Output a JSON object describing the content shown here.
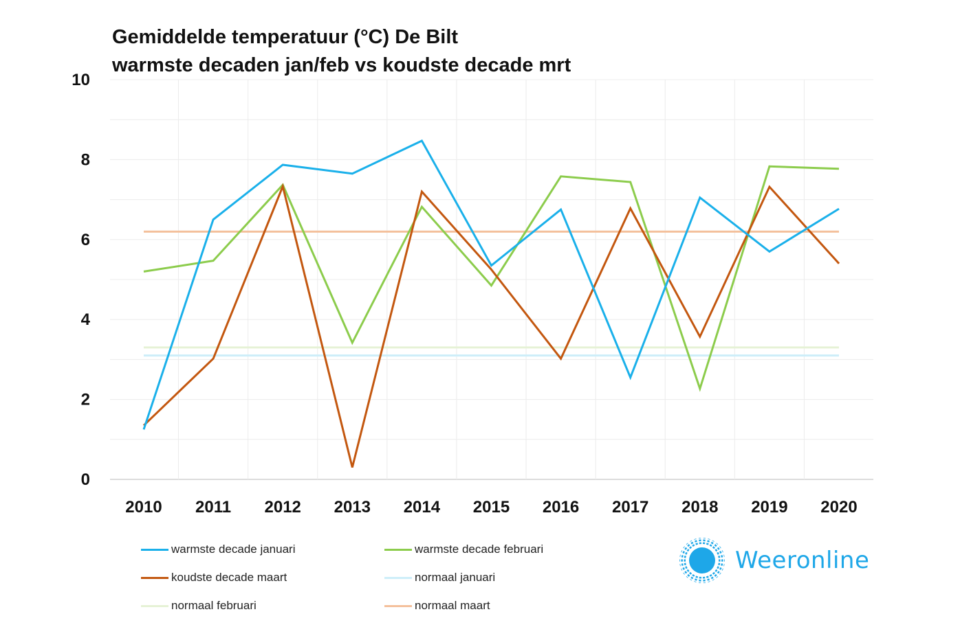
{
  "title": {
    "line1": "Gemiddelde temperatuur (°C)  De Bilt",
    "line2": "warmste decaden jan/feb vs koudste decade mrt"
  },
  "logo": {
    "text": "Weeronline",
    "icon": "sun-icon",
    "color": "#1ea7e8"
  },
  "chart_data": {
    "type": "line",
    "title": "Gemiddelde temperatuur (°C)  De Bilt warmste decaden jan/feb vs koudste decade mrt",
    "xlabel": "",
    "ylabel": "",
    "categories": [
      "2010",
      "2011",
      "2012",
      "2013",
      "2014",
      "2015",
      "2016",
      "2017",
      "2018",
      "2019",
      "2020"
    ],
    "ylim": [
      0,
      10
    ],
    "yticks": [
      0,
      2,
      4,
      6,
      8,
      10
    ],
    "grid": true,
    "legend_position": "bottom",
    "series": [
      {
        "name": "warmste decade januari",
        "color": "#1ab0ea",
        "width": 3,
        "values": [
          1.25,
          6.5,
          7.87,
          7.65,
          8.47,
          5.35,
          6.75,
          2.55,
          7.05,
          5.7,
          6.77
        ]
      },
      {
        "name": "warmste decade februari",
        "color": "#8ccc4c",
        "width": 3,
        "values": [
          5.2,
          5.47,
          7.37,
          3.42,
          6.82,
          4.85,
          7.58,
          7.44,
          2.27,
          7.83,
          7.77
        ]
      },
      {
        "name": "koudste decade maart",
        "color": "#c3570f",
        "width": 3,
        "values": [
          1.35,
          3.02,
          7.33,
          0.3,
          7.2,
          5.25,
          3.02,
          6.78,
          3.57,
          7.32,
          5.4
        ]
      },
      {
        "name": "normaal januari",
        "color": "#cdeef9",
        "width": 3,
        "values": [
          3.1,
          3.1,
          3.1,
          3.1,
          3.1,
          3.1,
          3.1,
          3.1,
          3.1,
          3.1,
          3.1
        ]
      },
      {
        "name": "normaal februari",
        "color": "#e6f2d6",
        "width": 3,
        "values": [
          3.3,
          3.3,
          3.3,
          3.3,
          3.3,
          3.3,
          3.3,
          3.3,
          3.3,
          3.3,
          3.3
        ]
      },
      {
        "name": "normaal maart",
        "color": "#f4c09c",
        "width": 3,
        "values": [
          6.2,
          6.2,
          6.2,
          6.2,
          6.2,
          6.2,
          6.2,
          6.2,
          6.2,
          6.2,
          6.2
        ]
      }
    ],
    "legend_order": [
      0,
      1,
      2,
      3,
      4,
      5
    ]
  }
}
